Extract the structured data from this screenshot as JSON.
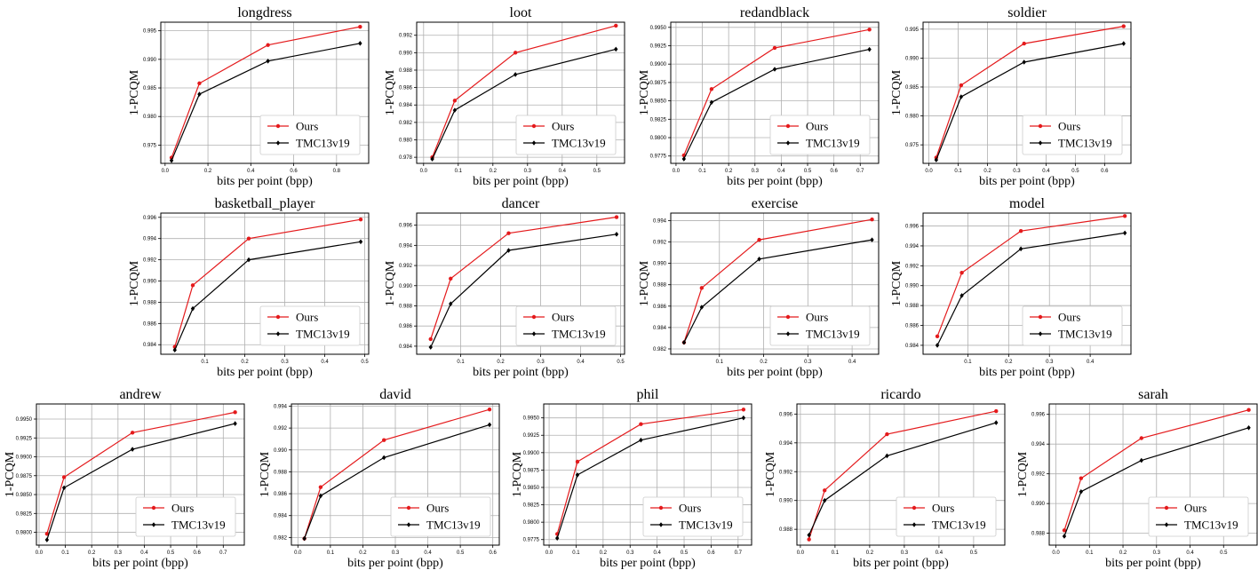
{
  "colors": {
    "ours": "#e41a1c",
    "tmc": "#000000",
    "grid": "#b0b0b0"
  },
  "chart_data": [
    {
      "type": "line",
      "title": "longdress",
      "xlabel": "bits per point (bpp)",
      "ylabel": "1-PCQM",
      "xlim": [
        -0.02,
        0.95
      ],
      "ylim": [
        0.9718,
        0.9965
      ],
      "xticks": [
        0.0,
        0.2,
        0.4,
        0.6,
        0.8
      ],
      "xtick_labels": [
        "0.0",
        "0.2",
        "0.4",
        "0.6",
        "0.8"
      ],
      "yticks": [
        0.975,
        0.98,
        0.985,
        0.99,
        0.995
      ],
      "ytick_labels": [
        "0.975",
        "0.980",
        "0.985",
        "0.990",
        "0.995"
      ],
      "legend_position": "lower-right",
      "grid": true,
      "series": [
        {
          "name": "Ours",
          "x": [
            0.03,
            0.16,
            0.48,
            0.91
          ],
          "y": [
            0.9728,
            0.9858,
            0.9925,
            0.9957
          ]
        },
        {
          "name": "TMC13v19",
          "x": [
            0.03,
            0.16,
            0.48,
            0.91
          ],
          "y": [
            0.9723,
            0.9839,
            0.9897,
            0.9928
          ]
        }
      ]
    },
    {
      "type": "line",
      "title": "loot",
      "xlabel": "bits per point (bpp)",
      "ylabel": "1-PCQM",
      "xlim": [
        -0.02,
        0.58
      ],
      "ylim": [
        0.9773,
        0.9935
      ],
      "xticks": [
        0.0,
        0.1,
        0.2,
        0.3,
        0.4,
        0.5
      ],
      "xtick_labels": [
        "0.0",
        "0.1",
        "0.2",
        "0.3",
        "0.4",
        "0.5"
      ],
      "yticks": [
        0.978,
        0.98,
        0.982,
        0.984,
        0.986,
        0.988,
        0.99,
        0.992
      ],
      "ytick_labels": [
        "0.978",
        "0.980",
        "0.982",
        "0.984",
        "0.986",
        "0.988",
        "0.990",
        "0.992"
      ],
      "legend_position": "lower-right",
      "grid": true,
      "series": [
        {
          "name": "Ours",
          "x": [
            0.025,
            0.09,
            0.265,
            0.555
          ],
          "y": [
            0.978,
            0.9845,
            0.99,
            0.9931
          ]
        },
        {
          "name": "TMC13v19",
          "x": [
            0.025,
            0.09,
            0.265,
            0.555
          ],
          "y": [
            0.9778,
            0.9834,
            0.9875,
            0.9904
          ]
        }
      ]
    },
    {
      "type": "line",
      "title": "redandblack",
      "xlabel": "bits per point (bpp)",
      "ylabel": "1-PCQM",
      "xlim": [
        -0.02,
        0.77
      ],
      "ylim": [
        0.9765,
        0.9957
      ],
      "xticks": [
        0.0,
        0.1,
        0.2,
        0.3,
        0.4,
        0.5,
        0.6,
        0.7
      ],
      "xtick_labels": [
        "0.0",
        "0.1",
        "0.2",
        "0.3",
        "0.4",
        "0.5",
        "0.6",
        "0.7"
      ],
      "yticks": [
        0.9775,
        0.98,
        0.9825,
        0.985,
        0.9875,
        0.99,
        0.9925,
        0.995
      ],
      "ytick_labels": [
        "0.9775",
        "0.9800",
        "0.9825",
        "0.9850",
        "0.9875",
        "0.9900",
        "0.9925",
        "0.9950"
      ],
      "legend_position": "lower-right",
      "grid": true,
      "series": [
        {
          "name": "Ours",
          "x": [
            0.03,
            0.135,
            0.375,
            0.735
          ],
          "y": [
            0.9776,
            0.9866,
            0.9922,
            0.9947
          ]
        },
        {
          "name": "TMC13v19",
          "x": [
            0.03,
            0.135,
            0.375,
            0.735
          ],
          "y": [
            0.9771,
            0.9848,
            0.9893,
            0.992
          ]
        }
      ]
    },
    {
      "type": "line",
      "title": "soldier",
      "xlabel": "bits per point (bpp)",
      "ylabel": "1-PCQM",
      "xlim": [
        -0.02,
        0.69
      ],
      "ylim": [
        0.9718,
        0.9962
      ],
      "xticks": [
        0.0,
        0.1,
        0.2,
        0.3,
        0.4,
        0.5,
        0.6
      ],
      "xtick_labels": [
        "0.0",
        "0.1",
        "0.2",
        "0.3",
        "0.4",
        "0.5",
        "0.6"
      ],
      "yticks": [
        0.975,
        0.98,
        0.985,
        0.99,
        0.995
      ],
      "ytick_labels": [
        "0.975",
        "0.980",
        "0.985",
        "0.990",
        "0.995"
      ],
      "legend_position": "lower-right",
      "grid": true,
      "series": [
        {
          "name": "Ours",
          "x": [
            0.025,
            0.11,
            0.325,
            0.665
          ],
          "y": [
            0.9728,
            0.9853,
            0.9925,
            0.9955
          ]
        },
        {
          "name": "TMC13v19",
          "x": [
            0.025,
            0.11,
            0.325,
            0.665
          ],
          "y": [
            0.9724,
            0.9833,
            0.9893,
            0.9925
          ]
        }
      ]
    },
    {
      "type": "line",
      "title": "basketball_player",
      "xlabel": "bits per point (bpp)",
      "ylabel": "1-PCQM",
      "xlim": [
        -0.01,
        0.51
      ],
      "ylim": [
        0.9831,
        0.9964
      ],
      "xticks": [
        0.1,
        0.2,
        0.3,
        0.4,
        0.5
      ],
      "xtick_labels": [
        "0.1",
        "0.2",
        "0.3",
        "0.4",
        "0.5"
      ],
      "yticks": [
        0.984,
        0.986,
        0.988,
        0.99,
        0.992,
        0.994,
        0.996
      ],
      "ytick_labels": [
        "0.984",
        "0.986",
        "0.988",
        "0.990",
        "0.992",
        "0.994",
        "0.996"
      ],
      "legend_position": "lower-right",
      "grid": true,
      "series": [
        {
          "name": "Ours",
          "x": [
            0.025,
            0.07,
            0.21,
            0.49
          ],
          "y": [
            0.9838,
            0.9896,
            0.994,
            0.9958
          ]
        },
        {
          "name": "TMC13v19",
          "x": [
            0.025,
            0.07,
            0.21,
            0.49
          ],
          "y": [
            0.9835,
            0.9874,
            0.992,
            0.9937
          ]
        }
      ]
    },
    {
      "type": "line",
      "title": "dancer",
      "xlabel": "bits per point (bpp)",
      "ylabel": "1-PCQM",
      "xlim": [
        -0.01,
        0.51
      ],
      "ylim": [
        0.9832,
        0.9972
      ],
      "xticks": [
        0.1,
        0.2,
        0.3,
        0.4,
        0.5
      ],
      "xtick_labels": [
        "0.1",
        "0.2",
        "0.3",
        "0.4",
        "0.5"
      ],
      "yticks": [
        0.984,
        0.986,
        0.988,
        0.99,
        0.992,
        0.994,
        0.996
      ],
      "ytick_labels": [
        "0.984",
        "0.986",
        "0.988",
        "0.990",
        "0.992",
        "0.994",
        "0.996"
      ],
      "legend_position": "lower-right",
      "grid": true,
      "series": [
        {
          "name": "Ours",
          "x": [
            0.025,
            0.075,
            0.22,
            0.49
          ],
          "y": [
            0.9847,
            0.9907,
            0.9952,
            0.9968
          ]
        },
        {
          "name": "TMC13v19",
          "x": [
            0.025,
            0.075,
            0.22,
            0.49
          ],
          "y": [
            0.9839,
            0.9882,
            0.9935,
            0.9951
          ]
        }
      ]
    },
    {
      "type": "line",
      "title": "exercise",
      "xlabel": "bits per point (bpp)",
      "ylabel": "1-PCQM",
      "xlim": [
        -0.01,
        0.46
      ],
      "ylim": [
        0.9815,
        0.9947
      ],
      "xticks": [
        0.1,
        0.2,
        0.3,
        0.4
      ],
      "xtick_labels": [
        "0.1",
        "0.2",
        "0.3",
        "0.4"
      ],
      "yticks": [
        0.982,
        0.984,
        0.986,
        0.988,
        0.99,
        0.992,
        0.994
      ],
      "ytick_labels": [
        "0.982",
        "0.984",
        "0.986",
        "0.988",
        "0.990",
        "0.992",
        "0.994"
      ],
      "legend_position": "lower-right",
      "grid": true,
      "series": [
        {
          "name": "Ours",
          "x": [
            0.02,
            0.06,
            0.19,
            0.445
          ],
          "y": [
            0.9826,
            0.9877,
            0.9922,
            0.9941
          ]
        },
        {
          "name": "TMC13v19",
          "x": [
            0.02,
            0.06,
            0.19,
            0.445
          ],
          "y": [
            0.9826,
            0.9859,
            0.9904,
            0.9922
          ]
        }
      ]
    },
    {
      "type": "line",
      "title": "model",
      "xlabel": "bits per point (bpp)",
      "ylabel": "1-PCQM",
      "xlim": [
        -0.01,
        0.5
      ],
      "ylim": [
        0.9831,
        0.9973
      ],
      "xticks": [
        0.1,
        0.2,
        0.3,
        0.4
      ],
      "xtick_labels": [
        "0.1",
        "0.2",
        "0.3",
        "0.4"
      ],
      "yticks": [
        0.984,
        0.986,
        0.988,
        0.99,
        0.992,
        0.994,
        0.996
      ],
      "ytick_labels": [
        "0.984",
        "0.986",
        "0.988",
        "0.990",
        "0.992",
        "0.994",
        "0.996"
      ],
      "legend_position": "lower-right",
      "grid": true,
      "series": [
        {
          "name": "Ours",
          "x": [
            0.025,
            0.085,
            0.23,
            0.485
          ],
          "y": [
            0.9849,
            0.9913,
            0.9955,
            0.997
          ]
        },
        {
          "name": "TMC13v19",
          "x": [
            0.025,
            0.085,
            0.23,
            0.485
          ],
          "y": [
            0.984,
            0.989,
            0.9937,
            0.9953
          ]
        }
      ]
    },
    {
      "type": "line",
      "title": "andrew",
      "xlabel": "bits per point (bpp)",
      "ylabel": "1-PCQM",
      "xlim": [
        -0.01,
        0.78
      ],
      "ylim": [
        0.9783,
        0.997
      ],
      "xticks": [
        0.0,
        0.1,
        0.2,
        0.3,
        0.4,
        0.5,
        0.6,
        0.7
      ],
      "xtick_labels": [
        "0.0",
        "0.1",
        "0.2",
        "0.3",
        "0.4",
        "0.5",
        "0.6",
        "0.7"
      ],
      "yticks": [
        0.98,
        0.9825,
        0.985,
        0.9875,
        0.99,
        0.9925,
        0.995
      ],
      "ytick_labels": [
        "0.9800",
        "0.9825",
        "0.9850",
        "0.9875",
        "0.9900",
        "0.9925",
        "0.9950"
      ],
      "legend_position": "lower-right",
      "grid": true,
      "series": [
        {
          "name": "Ours",
          "x": [
            0.03,
            0.095,
            0.355,
            0.745
          ],
          "y": [
            0.9798,
            0.9873,
            0.9932,
            0.9959
          ]
        },
        {
          "name": "TMC13v19",
          "x": [
            0.03,
            0.095,
            0.355,
            0.745
          ],
          "y": [
            0.979,
            0.9859,
            0.991,
            0.9944
          ]
        }
      ]
    },
    {
      "type": "line",
      "title": "david",
      "xlabel": "bits per point (bpp)",
      "ylabel": "1-PCQM",
      "xlim": [
        -0.02,
        0.62
      ],
      "ylim": [
        0.9813,
        0.9942
      ],
      "xticks": [
        0.0,
        0.1,
        0.2,
        0.3,
        0.4,
        0.5,
        0.6
      ],
      "xtick_labels": [
        "0.0",
        "0.1",
        "0.2",
        "0.3",
        "0.4",
        "0.5",
        "0.6"
      ],
      "yticks": [
        0.982,
        0.984,
        0.986,
        0.988,
        0.99,
        0.992,
        0.994
      ],
      "ytick_labels": [
        "0.982",
        "0.984",
        "0.986",
        "0.988",
        "0.990",
        "0.992",
        "0.994"
      ],
      "legend_position": "lower-right",
      "grid": true,
      "series": [
        {
          "name": "Ours",
          "x": [
            0.02,
            0.07,
            0.265,
            0.59
          ],
          "y": [
            0.9819,
            0.9866,
            0.9909,
            0.9937
          ]
        },
        {
          "name": "TMC13v19",
          "x": [
            0.02,
            0.07,
            0.265,
            0.59
          ],
          "y": [
            0.9819,
            0.9858,
            0.9893,
            0.9923
          ]
        }
      ]
    },
    {
      "type": "line",
      "title": "phil",
      "xlabel": "bits per point (bpp)",
      "ylabel": "1-PCQM",
      "xlim": [
        -0.02,
        0.75
      ],
      "ylim": [
        0.9767,
        0.997
      ],
      "xticks": [
        0.0,
        0.1,
        0.2,
        0.3,
        0.4,
        0.5,
        0.6,
        0.7
      ],
      "xtick_labels": [
        "0.0",
        "0.1",
        "0.2",
        "0.3",
        "0.4",
        "0.5",
        "0.6",
        "0.7"
      ],
      "yticks": [
        0.9775,
        0.98,
        0.9825,
        0.985,
        0.9875,
        0.99,
        0.9925,
        0.995
      ],
      "ytick_labels": [
        "0.9775",
        "0.9800",
        "0.9825",
        "0.9850",
        "0.9875",
        "0.9900",
        "0.9925",
        "0.9950"
      ],
      "legend_position": "lower-right",
      "grid": true,
      "series": [
        {
          "name": "Ours",
          "x": [
            0.03,
            0.105,
            0.34,
            0.72
          ],
          "y": [
            0.9783,
            0.9887,
            0.9941,
            0.9962
          ]
        },
        {
          "name": "TMC13v19",
          "x": [
            0.03,
            0.105,
            0.34,
            0.72
          ],
          "y": [
            0.9777,
            0.9868,
            0.9918,
            0.995
          ]
        }
      ]
    },
    {
      "type": "line",
      "title": "ricardo",
      "xlabel": "bits per point (bpp)",
      "ylabel": "1-PCQM",
      "xlim": [
        -0.01,
        0.59
      ],
      "ylim": [
        0.9869,
        0.9967
      ],
      "xticks": [
        0.0,
        0.1,
        0.2,
        0.3,
        0.4,
        0.5
      ],
      "xtick_labels": [
        "0.0",
        "0.1",
        "0.2",
        "0.3",
        "0.4",
        "0.5"
      ],
      "yticks": [
        0.988,
        0.99,
        0.992,
        0.994,
        0.996
      ],
      "ytick_labels": [
        "0.988",
        "0.990",
        "0.992",
        "0.994",
        "0.996"
      ],
      "legend_position": "lower-right",
      "grid": true,
      "series": [
        {
          "name": "Ours",
          "x": [
            0.025,
            0.07,
            0.25,
            0.565
          ],
          "y": [
            0.9873,
            0.9907,
            0.9946,
            0.9962
          ]
        },
        {
          "name": "TMC13v19",
          "x": [
            0.025,
            0.07,
            0.25,
            0.565
          ],
          "y": [
            0.9876,
            0.99,
            0.9931,
            0.9954
          ]
        }
      ]
    },
    {
      "type": "line",
      "title": "sarah",
      "xlabel": "bits per point (bpp)",
      "ylabel": "1-PCQM",
      "xlim": [
        -0.02,
        0.6
      ],
      "ylim": [
        0.9872,
        0.9967
      ],
      "xticks": [
        0.0,
        0.1,
        0.2,
        0.3,
        0.4,
        0.5
      ],
      "xtick_labels": [
        "0.0",
        "0.1",
        "0.2",
        "0.3",
        "0.4",
        "0.5"
      ],
      "yticks": [
        0.988,
        0.99,
        0.992,
        0.994,
        0.996
      ],
      "ytick_labels": [
        "0.988",
        "0.990",
        "0.992",
        "0.994",
        "0.996"
      ],
      "legend_position": "lower-right",
      "grid": true,
      "series": [
        {
          "name": "Ours",
          "x": [
            0.025,
            0.075,
            0.255,
            0.575
          ],
          "y": [
            0.9882,
            0.9917,
            0.9944,
            0.9963
          ]
        },
        {
          "name": "TMC13v19",
          "x": [
            0.025,
            0.075,
            0.255,
            0.575
          ],
          "y": [
            0.9878,
            0.9908,
            0.9929,
            0.9951
          ]
        }
      ]
    }
  ]
}
